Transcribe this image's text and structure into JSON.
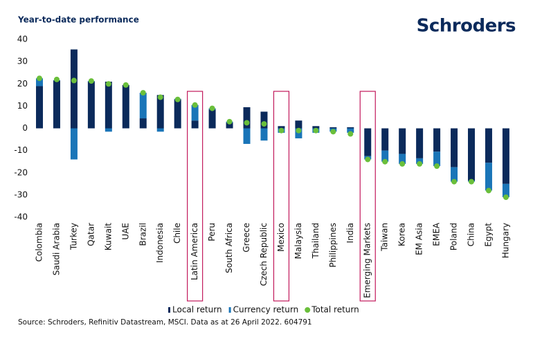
{
  "chart_data": {
    "type": "stacked_bar_with_dots",
    "title": "Year-to-date performance",
    "logo": "Schroders",
    "source": "Source: Schroders, Refinitiv Datastream, MSCI. Data as at 26 April 2022. 604791",
    "categories": [
      "Colombia",
      "Saudi Arabia",
      "Turkey",
      "Qatar",
      "Kuwait",
      "UAE",
      "Brazil",
      "Indonesia",
      "Chile",
      "Latin America",
      "Peru",
      "South Africa",
      "Greece",
      "Czech Republic",
      "Mexico",
      "Malaysia",
      "Thailand",
      "Philippines",
      "India",
      "Emerging Markets",
      "Taiwan",
      "Korea",
      "EM Asia",
      "EMEA",
      "Poland",
      "China",
      "Egypt",
      "Hungary"
    ],
    "highlight": [
      "Latin America",
      "Mexico",
      "Emerging Markets"
    ],
    "highlight_color": "#c2185b",
    "series": [
      {
        "name": "Local return",
        "color": "#0b2a5b",
        "kind": "bar",
        "values": [
          19,
          21.5,
          35.5,
          21,
          21,
          19.5,
          4.5,
          15,
          13,
          3.5,
          8.5,
          2.5,
          9.5,
          7.5,
          1,
          3.5,
          1,
          0.5,
          0.5,
          -12.5,
          -10,
          -11.5,
          -13.5,
          -10.5,
          -17.5,
          -23.5,
          -15.5,
          -25
        ]
      },
      {
        "name": "Currency return",
        "color": "#1a75b8",
        "kind": "bar",
        "values": [
          3.5,
          0.2,
          -14,
          0.3,
          -1.5,
          0,
          11.5,
          -1.5,
          0.3,
          7,
          0.5,
          0.5,
          -7,
          -5.5,
          -2,
          -4.5,
          -2,
          -1.5,
          -2,
          -1.5,
          -5,
          -4.5,
          -2.5,
          -6.5,
          -6.5,
          -0.5,
          -12.5,
          -6
        ]
      },
      {
        "name": "Total return",
        "color": "#6abf3b",
        "kind": "dot",
        "values": [
          22.5,
          22,
          21.5,
          21.3,
          20,
          19.5,
          16,
          14,
          13,
          10.5,
          9,
          3,
          2.5,
          2,
          -1,
          -1,
          -1,
          -1.5,
          -2.5,
          -14,
          -15,
          -16,
          -16,
          -17,
          -24,
          -24,
          -28,
          -31
        ]
      }
    ],
    "ylim": [
      -40,
      40
    ],
    "yticks": [
      40,
      30,
      20,
      10,
      0,
      -10,
      -20,
      -30,
      -40
    ],
    "grid": false
  }
}
